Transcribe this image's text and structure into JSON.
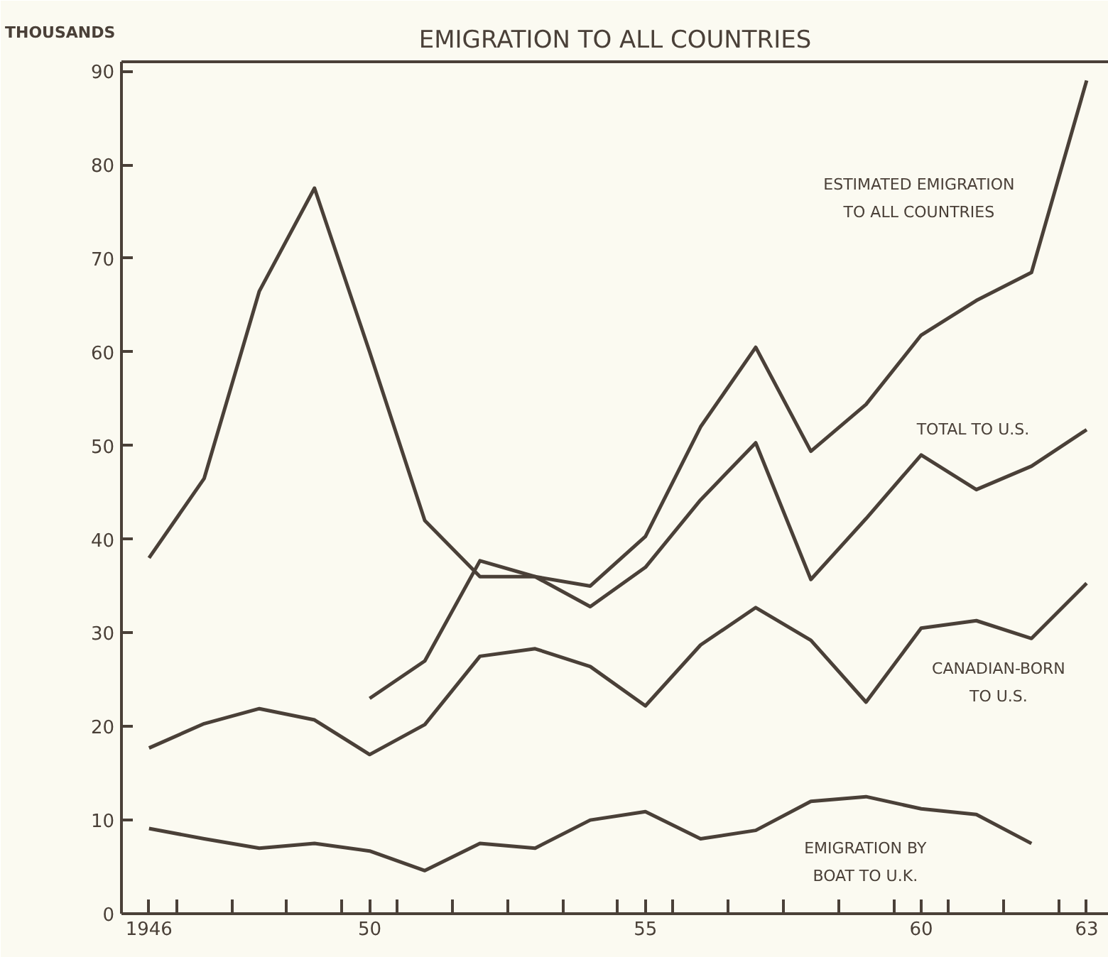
{
  "chart_data": {
    "type": "line",
    "title": "EMIGRATION TO ALL COUNTRIES",
    "ylabel": "THOUSANDS",
    "x": [
      1946,
      1947,
      1948,
      1949,
      1950,
      1951,
      1952,
      1953,
      1954,
      1955,
      1956,
      1957,
      1958,
      1959,
      1960,
      1961,
      1962,
      1963
    ],
    "series": [
      {
        "name": "ESTIMATED EMIGRATION\nTO ALL COUNTRIES",
        "color": "#4a4038",
        "values": [
          38,
          46.5,
          66.5,
          77.5,
          60,
          42,
          36,
          36,
          35,
          40.3,
          52,
          60.5,
          49.4,
          54.4,
          61.8,
          65.5,
          68.5,
          89
        ]
      },
      {
        "name": "TOTAL TO U.S.",
        "color": "#4a4038",
        "values": [
          null,
          null,
          null,
          null,
          23,
          27,
          37.7,
          36,
          32.8,
          37,
          44.2,
          50.3,
          35.7,
          42.2,
          49,
          45.3,
          47.8,
          51.7
        ]
      },
      {
        "name": "CANADIAN-BORN\nTO U.S.",
        "color": "#4a4038",
        "values": [
          17.7,
          20.3,
          21.9,
          20.7,
          17,
          20.2,
          27.5,
          28.3,
          26.4,
          22.2,
          28.7,
          32.7,
          29.2,
          22.6,
          30.5,
          31.3,
          29.4,
          35.3
        ]
      },
      {
        "name": "EMIGRATION BY\nBOAT TO U.K.",
        "color": "#4a4038",
        "values": [
          9.1,
          8,
          7,
          7.5,
          6.7,
          4.6,
          7.5,
          7,
          10,
          10.9,
          8,
          8.9,
          12,
          12.5,
          11.2,
          10.6,
          7.5,
          null
        ]
      }
    ],
    "xlim": [
      1945.5,
      1963.4
    ],
    "ylim": [
      0,
      91
    ],
    "xticks": [
      {
        "value": 1946,
        "label": "1946"
      },
      {
        "value": 1950,
        "label": "50"
      },
      {
        "value": 1955,
        "label": "55"
      },
      {
        "value": 1960,
        "label": "60"
      },
      {
        "value": 1963,
        "label": "63"
      },
      {
        "value": 1946.5,
        "label": null
      },
      {
        "value": 1947.5,
        "label": null
      },
      {
        "value": 1948.5,
        "label": null
      },
      {
        "value": 1949.5,
        "label": null
      },
      {
        "value": 1950.5,
        "label": null
      },
      {
        "value": 1951.5,
        "label": null
      },
      {
        "value": 1952.5,
        "label": null
      },
      {
        "value": 1953.5,
        "label": null
      },
      {
        "value": 1954.5,
        "label": null
      },
      {
        "value": 1955.5,
        "label": null
      },
      {
        "value": 1956.5,
        "label": null
      },
      {
        "value": 1957.5,
        "label": null
      },
      {
        "value": 1958.5,
        "label": null
      },
      {
        "value": 1959.5,
        "label": null
      },
      {
        "value": 1960.5,
        "label": null
      },
      {
        "value": 1961.5,
        "label": null
      },
      {
        "value": 1962.5,
        "label": null
      }
    ],
    "yticks": [
      0,
      10,
      20,
      30,
      40,
      50,
      60,
      70,
      80,
      90
    ],
    "grid": false
  }
}
